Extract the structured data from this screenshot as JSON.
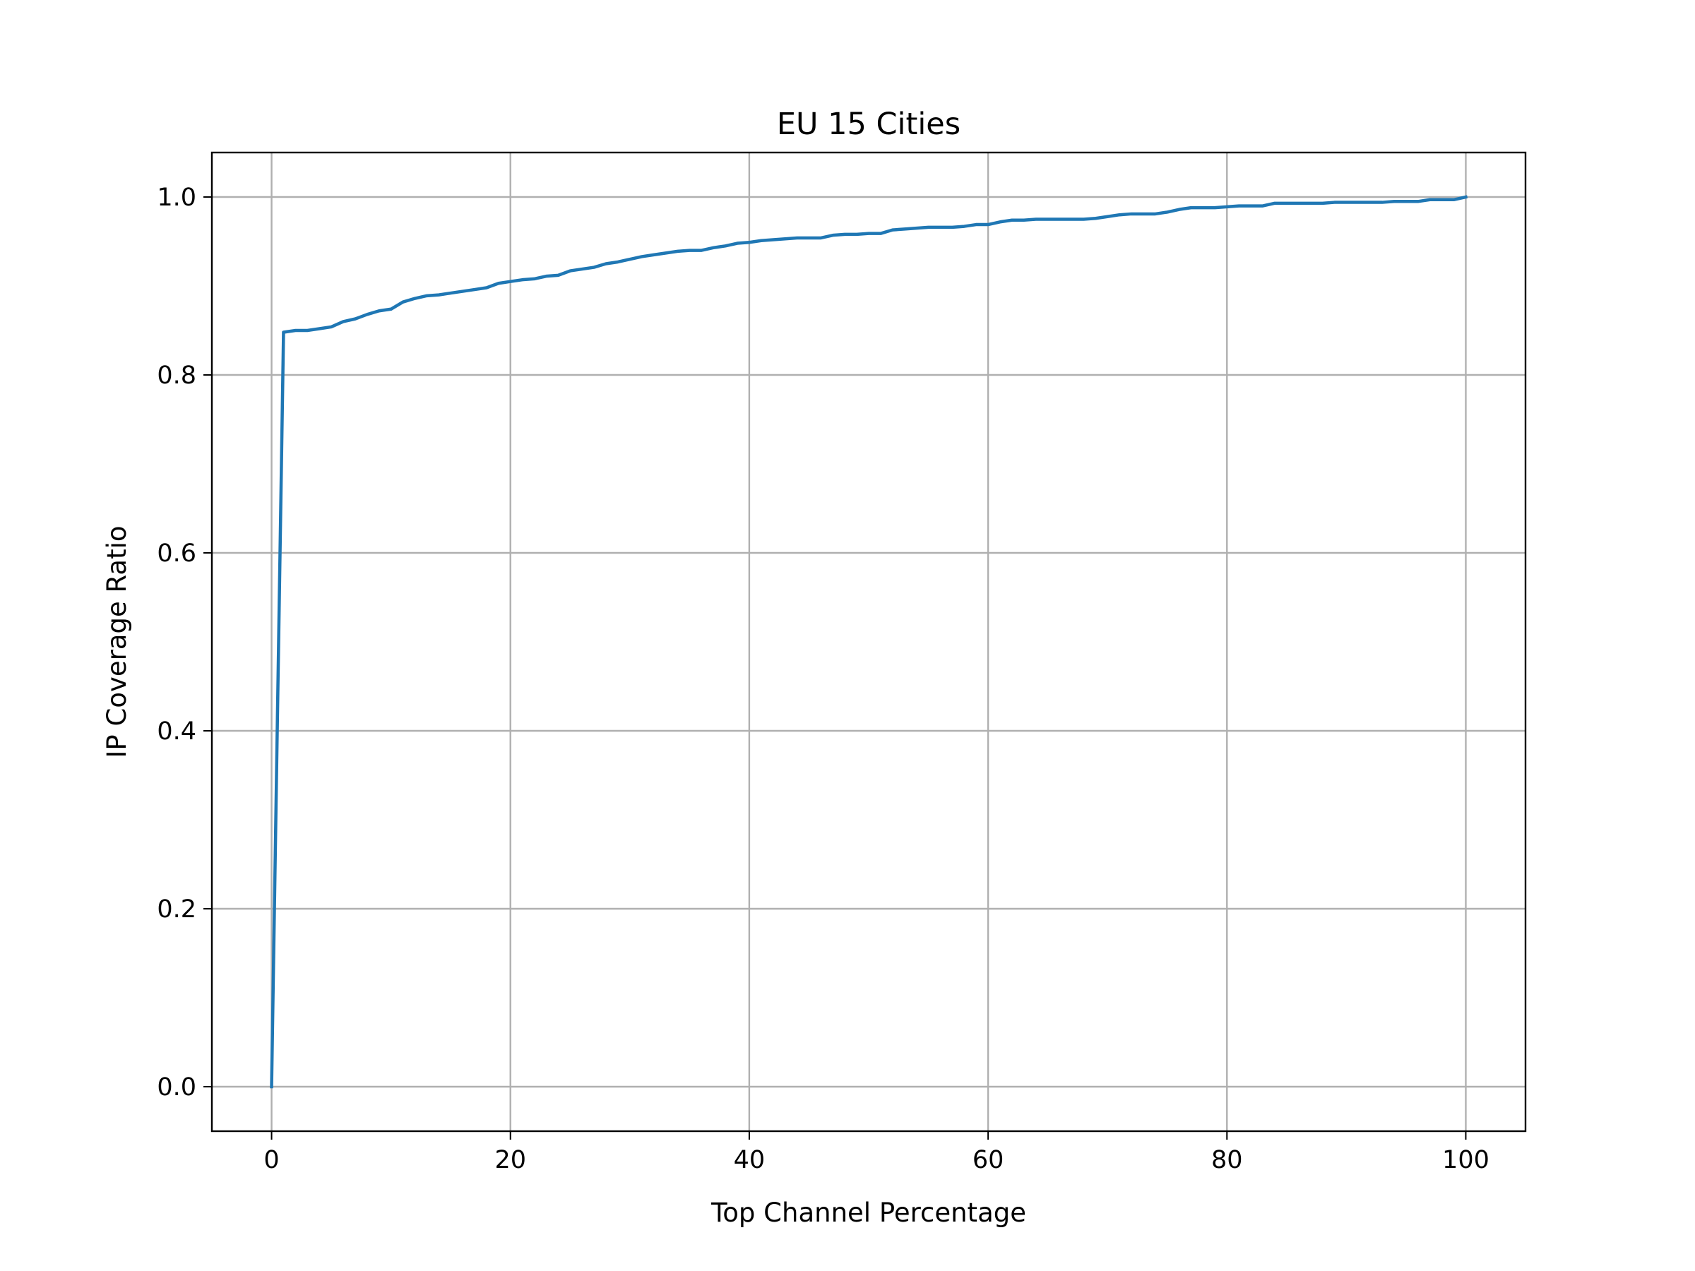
{
  "chart_data": {
    "type": "line",
    "title": "EU 15 Cities",
    "xlabel": "Top Channel Percentage",
    "ylabel": "IP Coverage Ratio",
    "xlim": [
      -5,
      105
    ],
    "ylim": [
      -0.05,
      1.05
    ],
    "xticks": [
      0,
      20,
      40,
      60,
      80,
      100
    ],
    "xtick_labels": [
      "0",
      "20",
      "40",
      "60",
      "80",
      "100"
    ],
    "yticks": [
      0.0,
      0.2,
      0.4,
      0.6,
      0.8,
      1.0
    ],
    "ytick_labels": [
      "0.0",
      "0.2",
      "0.4",
      "0.6",
      "0.8",
      "1.0"
    ],
    "grid": true,
    "legend": "none",
    "series_color": "#1f77b4",
    "series": [
      {
        "x": [
          0,
          1,
          2,
          3,
          4,
          5,
          6,
          7,
          8,
          9,
          10,
          11,
          12,
          13,
          14,
          15,
          16,
          17,
          18,
          19,
          20,
          21,
          22,
          23,
          24,
          25,
          26,
          27,
          28,
          29,
          30,
          31,
          32,
          33,
          34,
          35,
          36,
          37,
          38,
          39,
          40,
          41,
          42,
          43,
          44,
          45,
          46,
          47,
          48,
          49,
          50,
          51,
          52,
          53,
          54,
          55,
          56,
          57,
          58,
          59,
          60,
          61,
          62,
          63,
          64,
          65,
          66,
          67,
          68,
          69,
          70,
          71,
          72,
          73,
          74,
          75,
          76,
          77,
          78,
          79,
          80,
          81,
          82,
          83,
          84,
          85,
          86,
          87,
          88,
          89,
          90,
          91,
          92,
          93,
          94,
          95,
          96,
          97,
          98,
          99,
          100
        ],
        "values": [
          0.0,
          0.848,
          0.85,
          0.85,
          0.852,
          0.854,
          0.86,
          0.863,
          0.868,
          0.872,
          0.874,
          0.882,
          0.886,
          0.889,
          0.89,
          0.892,
          0.894,
          0.896,
          0.898,
          0.903,
          0.905,
          0.907,
          0.908,
          0.911,
          0.912,
          0.917,
          0.919,
          0.921,
          0.925,
          0.927,
          0.93,
          0.933,
          0.935,
          0.937,
          0.939,
          0.94,
          0.94,
          0.943,
          0.945,
          0.948,
          0.949,
          0.951,
          0.952,
          0.953,
          0.954,
          0.954,
          0.954,
          0.957,
          0.958,
          0.958,
          0.959,
          0.959,
          0.963,
          0.964,
          0.965,
          0.966,
          0.966,
          0.966,
          0.967,
          0.969,
          0.969,
          0.972,
          0.974,
          0.974,
          0.975,
          0.975,
          0.975,
          0.975,
          0.975,
          0.976,
          0.978,
          0.98,
          0.981,
          0.981,
          0.981,
          0.983,
          0.986,
          0.988,
          0.988,
          0.988,
          0.989,
          0.99,
          0.99,
          0.99,
          0.993,
          0.993,
          0.993,
          0.993,
          0.993,
          0.994,
          0.994,
          0.994,
          0.994,
          0.994,
          0.995,
          0.995,
          0.995,
          0.997,
          0.997,
          0.997,
          1.0
        ]
      }
    ]
  }
}
